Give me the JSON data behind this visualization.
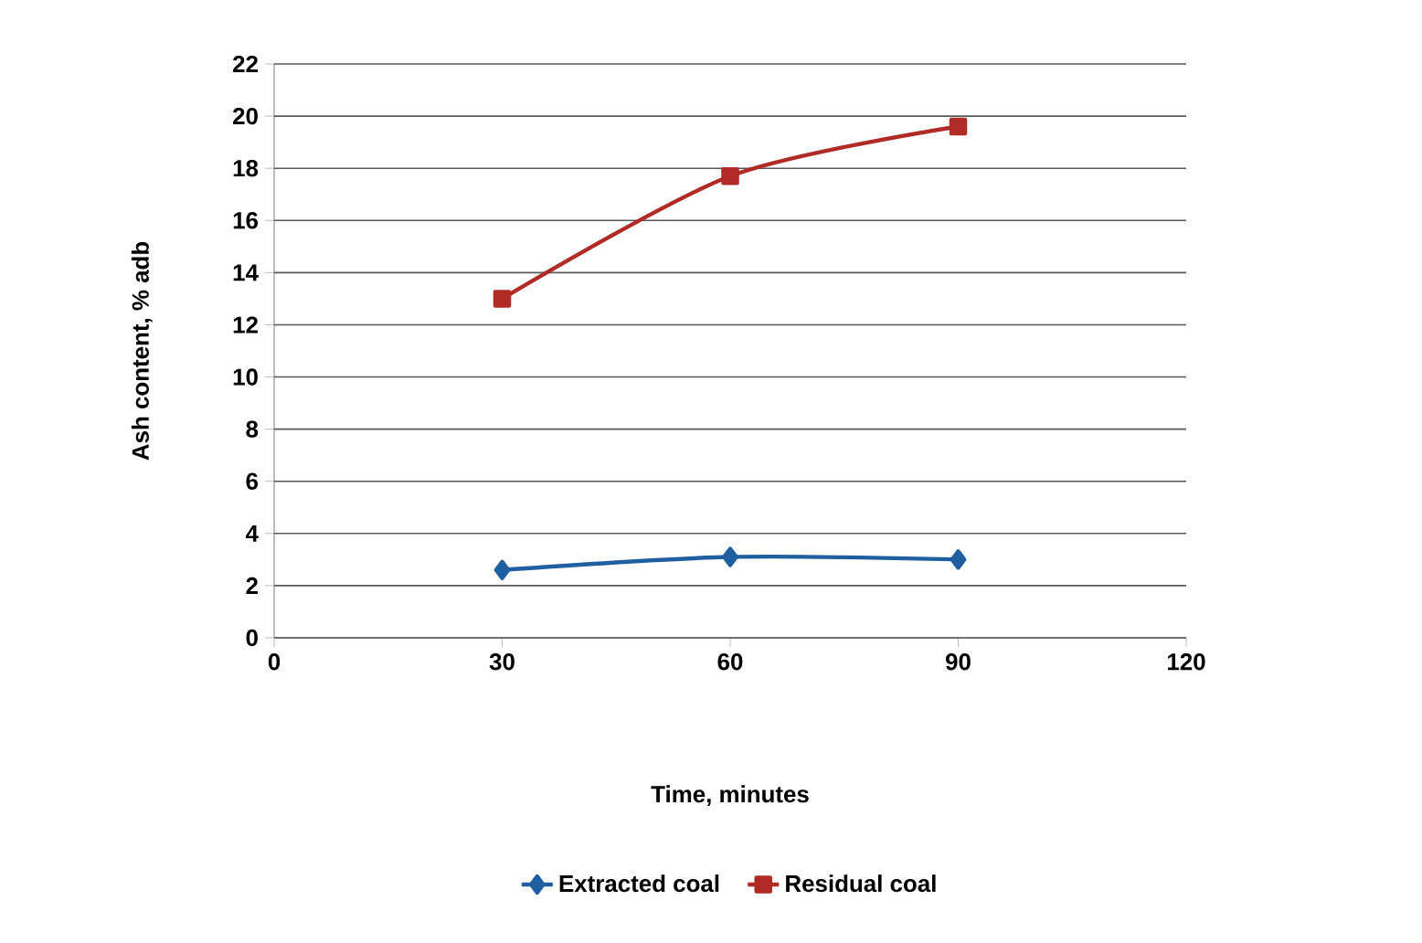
{
  "chart_data": {
    "type": "line",
    "xlabel": "Time, minutes",
    "ylabel": "Ash content, % adb",
    "xlim": [
      0,
      120
    ],
    "xticks": [
      0,
      30,
      60,
      90,
      120
    ],
    "ylim": [
      0,
      22
    ],
    "yticks": [
      0,
      2,
      4,
      6,
      8,
      10,
      12,
      14,
      16,
      18,
      20,
      22
    ],
    "grid": "y",
    "legend": "bottom",
    "line_style": "solid",
    "series": [
      {
        "name": "Extracted coal",
        "color": "#1f5fa0",
        "marker": "diamond",
        "x": [
          30,
          60,
          90
        ],
        "values": [
          2.6,
          3.1,
          3.0
        ]
      },
      {
        "name": "Residual coal",
        "color": "#b02a26",
        "marker": "square",
        "x": [
          30,
          60,
          90
        ],
        "values": [
          13.0,
          17.7,
          19.6
        ]
      }
    ]
  }
}
